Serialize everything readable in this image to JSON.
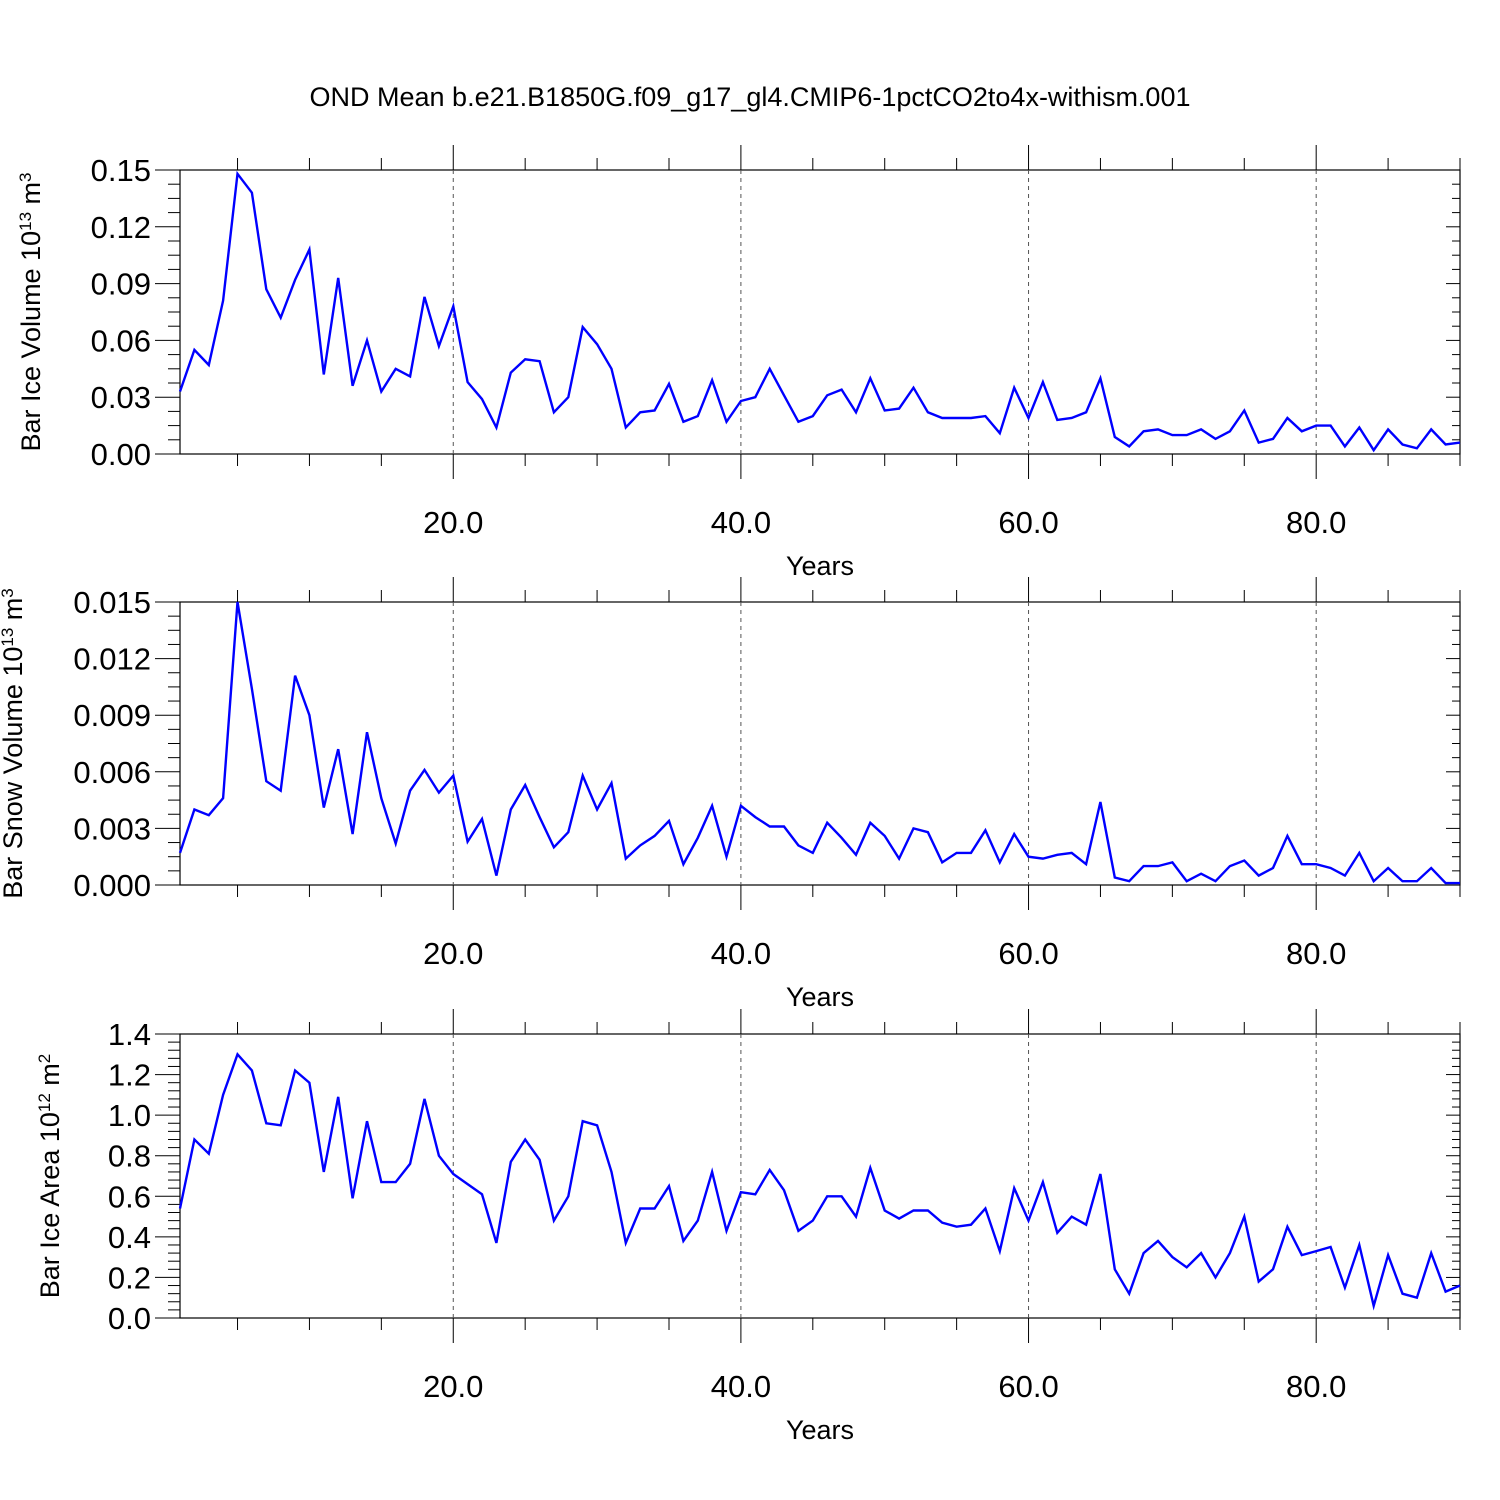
{
  "title": "OND Mean b.e21.B1850G.f09_g17_gl4.CMIP6-1pctCO2to4x-withism.001",
  "line_color": "#0000ff",
  "chart_data": [
    {
      "type": "line",
      "ylabel_text": "Bar Ice Volume 10",
      "ylabel_exp": "13",
      "ylabel_unit": " m",
      "ylabel_unit_exp": "3",
      "xlabel": "Years",
      "xlim": [
        1,
        90
      ],
      "ylim": [
        0,
        0.15
      ],
      "yticks": [
        0,
        0.03,
        0.06,
        0.09,
        0.12,
        0.15
      ],
      "ytick_labels": [
        "0.00",
        "0.03",
        "0.06",
        "0.09",
        "0.12",
        "0.15"
      ],
      "xticks": [
        20,
        40,
        60,
        80
      ],
      "xtick_labels": [
        "20.0",
        "40.0",
        "60.0",
        "80.0"
      ],
      "series": [
        {
          "values": [
            0.033,
            0.055,
            0.047,
            0.081,
            0.148,
            0.138,
            0.087,
            0.072,
            0.092,
            0.108,
            0.042,
            0.093,
            0.036,
            0.06,
            0.033,
            0.045,
            0.041,
            0.083,
            0.057,
            0.078,
            0.038,
            0.029,
            0.014,
            0.043,
            0.05,
            0.049,
            0.022,
            0.03,
            0.067,
            0.058,
            0.045,
            0.014,
            0.022,
            0.023,
            0.037,
            0.017,
            0.02,
            0.039,
            0.017,
            0.028,
            0.03,
            0.045,
            0.031,
            0.017,
            0.02,
            0.031,
            0.034,
            0.022,
            0.04,
            0.023,
            0.024,
            0.035,
            0.022,
            0.019,
            0.019,
            0.019,
            0.02,
            0.011,
            0.035,
            0.019,
            0.038,
            0.018,
            0.019,
            0.022,
            0.04,
            0.009,
            0.004,
            0.012,
            0.013,
            0.01,
            0.01,
            0.013,
            0.008,
            0.012,
            0.023,
            0.006,
            0.008,
            0.019,
            0.012,
            0.015,
            0.015,
            0.004,
            0.014,
            0.002,
            0.013,
            0.005,
            0.003,
            0.013,
            0.005,
            0.006
          ]
        }
      ]
    },
    {
      "type": "line",
      "ylabel_text": "Bar Snow Volume 10",
      "ylabel_exp": "13",
      "ylabel_unit": " m",
      "ylabel_unit_exp": "3",
      "xlabel": "Years",
      "xlim": [
        1,
        90
      ],
      "ylim": [
        0,
        0.015
      ],
      "yticks": [
        0,
        0.003,
        0.006,
        0.009,
        0.012,
        0.015
      ],
      "ytick_labels": [
        "0.000",
        "0.003",
        "0.006",
        "0.009",
        "0.012",
        "0.015"
      ],
      "xticks": [
        20,
        40,
        60,
        80
      ],
      "xtick_labels": [
        "20.0",
        "40.0",
        "60.0",
        "80.0"
      ],
      "series": [
        {
          "values": [
            0.0017,
            0.004,
            0.0037,
            0.0046,
            0.015,
            0.0104,
            0.0055,
            0.005,
            0.0111,
            0.009,
            0.0041,
            0.0072,
            0.0027,
            0.0081,
            0.0046,
            0.0022,
            0.005,
            0.0061,
            0.0049,
            0.0058,
            0.0023,
            0.0035,
            0.0005,
            0.004,
            0.0053,
            0.0036,
            0.002,
            0.0028,
            0.0058,
            0.004,
            0.0054,
            0.0014,
            0.0021,
            0.0026,
            0.0034,
            0.0011,
            0.0025,
            0.0042,
            0.0015,
            0.0042,
            0.0036,
            0.0031,
            0.0031,
            0.0021,
            0.0017,
            0.0033,
            0.0025,
            0.0016,
            0.0033,
            0.0026,
            0.0014,
            0.003,
            0.0028,
            0.0012,
            0.0017,
            0.0017,
            0.0029,
            0.0012,
            0.0027,
            0.0015,
            0.0014,
            0.0016,
            0.0017,
            0.0011,
            0.0044,
            0.0004,
            0.0002,
            0.001,
            0.001,
            0.0012,
            0.0002,
            0.0006,
            0.0002,
            0.001,
            0.0013,
            0.0005,
            0.0009,
            0.0026,
            0.0011,
            0.0011,
            0.0009,
            0.0005,
            0.0017,
            0.0002,
            0.0009,
            0.0002,
            0.0002,
            0.0009,
            0.0001,
            0.0001
          ]
        }
      ]
    },
    {
      "type": "line",
      "ylabel_text": "Bar Ice Area 10",
      "ylabel_exp": "12",
      "ylabel_unit": " m",
      "ylabel_unit_exp": "2",
      "xlabel": "Years",
      "xlim": [
        1,
        90
      ],
      "ylim": [
        0,
        1.4
      ],
      "yticks": [
        0,
        0.2,
        0.4,
        0.6,
        0.8,
        1.0,
        1.2,
        1.4
      ],
      "ytick_labels": [
        "0.0",
        "0.2",
        "0.4",
        "0.6",
        "0.8",
        "1.0",
        "1.2",
        "1.4"
      ],
      "xticks": [
        20,
        40,
        60,
        80
      ],
      "xtick_labels": [
        "20.0",
        "40.0",
        "60.0",
        "80.0"
      ],
      "series": [
        {
          "values": [
            0.54,
            0.88,
            0.81,
            1.1,
            1.3,
            1.22,
            0.96,
            0.95,
            1.22,
            1.16,
            0.72,
            1.09,
            0.59,
            0.97,
            0.67,
            0.67,
            0.76,
            1.08,
            0.8,
            0.71,
            0.66,
            0.61,
            0.37,
            0.77,
            0.88,
            0.78,
            0.48,
            0.6,
            0.97,
            0.95,
            0.72,
            0.37,
            0.54,
            0.54,
            0.65,
            0.38,
            0.48,
            0.72,
            0.43,
            0.62,
            0.61,
            0.73,
            0.63,
            0.43,
            0.48,
            0.6,
            0.6,
            0.5,
            0.74,
            0.53,
            0.49,
            0.53,
            0.53,
            0.47,
            0.45,
            0.46,
            0.54,
            0.33,
            0.64,
            0.48,
            0.67,
            0.42,
            0.5,
            0.46,
            0.71,
            0.24,
            0.12,
            0.32,
            0.38,
            0.3,
            0.25,
            0.32,
            0.2,
            0.32,
            0.5,
            0.18,
            0.24,
            0.45,
            0.31,
            0.33,
            0.35,
            0.15,
            0.36,
            0.06,
            0.31,
            0.12,
            0.1,
            0.32,
            0.13,
            0.16
          ]
        }
      ]
    }
  ]
}
